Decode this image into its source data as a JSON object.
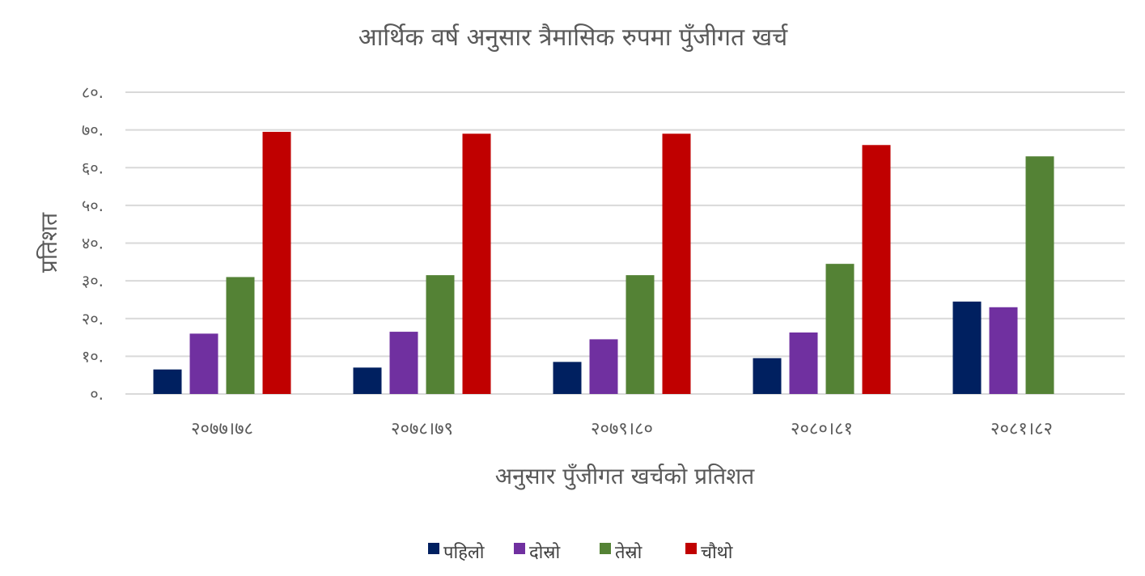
{
  "chart_data": {
    "type": "bar",
    "title": "आर्थिक वर्ष अनुसार त्रैमासिक रुपमा पुँजीगत खर्च",
    "xlabel": "अनुसार पुँजीगत खर्चको प्रतिशत",
    "ylabel": "प्रतिशत",
    "ylim": [
      0,
      80
    ],
    "y_ticks": [
      0,
      10,
      20,
      30,
      40,
      50,
      60,
      70,
      80
    ],
    "y_tick_labels": [
      "०.",
      "१०.",
      "२०.",
      "३०.",
      "४०.",
      "५०.",
      "६०.",
      "७०.",
      "८०."
    ],
    "grid": true,
    "legend_position": "bottom",
    "categories": [
      "२०७७।७८",
      "२०७८।७९",
      "२०७९।८०",
      "२०८०।८१",
      "२०८१।८२"
    ],
    "series": [
      {
        "name": "पहिलो",
        "color": "#002060",
        "values": [
          6.5,
          7,
          8.5,
          9.5,
          24.5
        ]
      },
      {
        "name": "दोस्रो",
        "color": "#7030a0",
        "values": [
          16,
          16.5,
          14.5,
          16.3,
          23
        ]
      },
      {
        "name": "तेस्रो",
        "color": "#548235",
        "values": [
          31,
          31.5,
          31.5,
          34.5,
          63
        ]
      },
      {
        "name": "चौथो",
        "color": "#c00000",
        "values": [
          69.5,
          69,
          69,
          66,
          null
        ]
      }
    ]
  }
}
